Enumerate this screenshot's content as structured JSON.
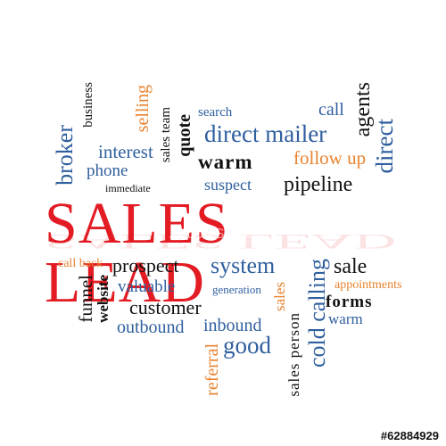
{
  "title": "SALES LEAD",
  "watermark": "Adobe Stock",
  "image_id": "#62884929",
  "colors": {
    "title": "#e31b23",
    "blue": "#2f5f9e",
    "orange": "#e8832f",
    "black": "#111111"
  },
  "words": {
    "broker": "broker",
    "business": "business",
    "selling": "selling",
    "interest": "interest",
    "sales_team": "sales team",
    "quote": "quote",
    "search": "search",
    "call": "call",
    "agents": "agents",
    "direct_mailer": "direct mailer",
    "direct": "direct",
    "phone": "phone",
    "immediate": "immediate",
    "warm_top": "warm",
    "follow_up": "follow up",
    "suspect": "suspect",
    "pipeline": "pipeline",
    "call_back": "call back",
    "prospect": "prospect",
    "system": "system",
    "sale": "sale",
    "funnel": "funnel",
    "website": "website",
    "valuable": "valuable",
    "generation": "generation",
    "sales_vert": "sales",
    "cold_calling": "cold calling",
    "appointments": "appointments",
    "forms": "forms",
    "customer": "customer",
    "warm_bottom": "warm",
    "outbound": "outbound",
    "inbound": "inbound",
    "person": "person",
    "good": "good",
    "referral": "referral",
    "sales_person": "sales person"
  }
}
